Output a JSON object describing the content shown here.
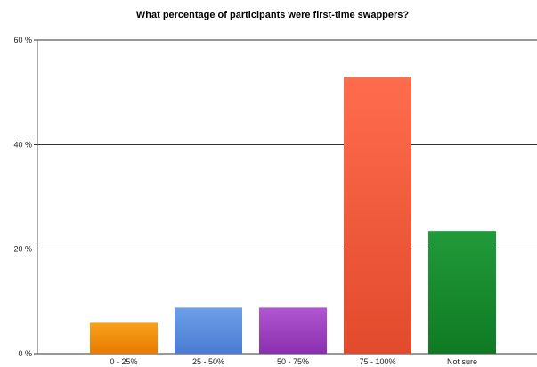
{
  "chart_data": {
    "type": "bar",
    "title": "What percentage of participants were first-time swappers?",
    "xlabel": "",
    "ylabel": "",
    "categories": [
      "0 - 25%",
      "25 - 50%",
      "50 - 75%",
      "75 - 100%",
      "Not sure"
    ],
    "values": [
      5.9,
      8.8,
      8.8,
      52.9,
      23.5
    ],
    "ylim": [
      0,
      60
    ],
    "yticks": [
      0,
      20,
      40,
      60
    ],
    "ytick_labels": [
      "0 %",
      "20 %",
      "40 %",
      "60 %"
    ],
    "grid": true,
    "legend": "none",
    "colors": [
      {
        "top": "#f7a21b",
        "bottom": "#e97a00"
      },
      {
        "top": "#6d9fe8",
        "bottom": "#4a7bd3"
      },
      {
        "top": "#b156d1",
        "bottom": "#8a2fae"
      },
      {
        "top": "#ff6c4d",
        "bottom": "#e24a2c"
      },
      {
        "top": "#229a3a",
        "bottom": "#0f7a22"
      }
    ]
  }
}
